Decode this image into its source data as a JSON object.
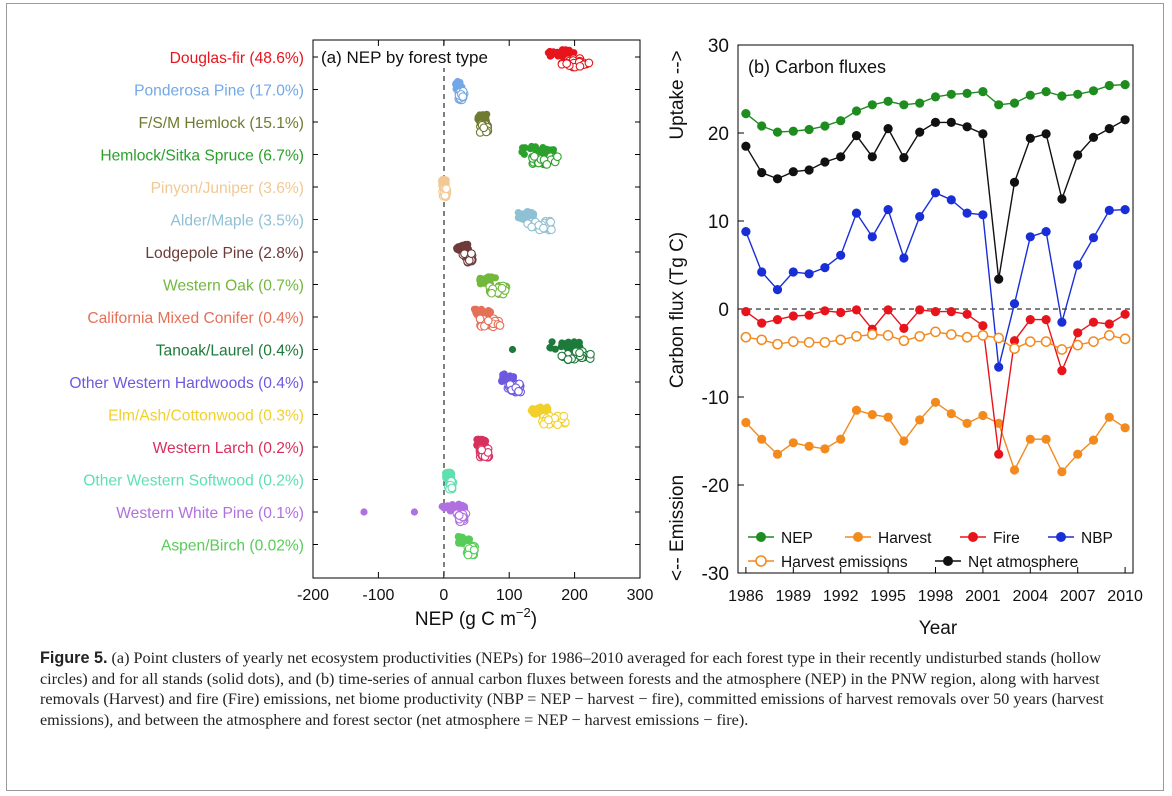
{
  "caption": {
    "label": "Figure 5.",
    "text": "(a) Point clusters of yearly net ecosystem productivities (NEPs) for 1986–2010 averaged for each forest type in their recently undisturbed stands (hollow circles) and for all stands (solid dots), and (b) time-series of annual carbon fluxes between forests and the atmosphere (NEP) in the PNW region, along with harvest removals (Harvest) and fire (Fire) emissions, net biome productivity (NBP = NEP − harvest − fire), committed emissions of harvest removals over 50 years (harvest emissions), and between the atmosphere and forest sector (net atmosphere = NEP − harvest emissions − fire)."
  },
  "chart_data": [
    {
      "type": "scatter",
      "panel_title": "(a) NEP by forest type",
      "xlabel_main": "NEP (g C m",
      "xlabel_sup": "−2",
      "xlabel_tail": ")",
      "xlim": [
        -200,
        300
      ],
      "xticks": [
        -200,
        -100,
        0,
        100,
        200,
        300
      ],
      "reference_line_x": 0,
      "categories": [
        {
          "label": "Douglas-fir (48.6%)",
          "color": "#e8141c",
          "solid_range": [
            155,
            200
          ],
          "hollow_range": [
            180,
            222
          ],
          "outliers": []
        },
        {
          "label": "Ponderosa Pine (17.0%)",
          "color": "#72a8e6",
          "solid_range": [
            18,
            28
          ],
          "hollow_range": [
            22,
            32
          ],
          "outliers": []
        },
        {
          "label": "F/S/M Hemlock (15.1%)",
          "color": "#707a30",
          "solid_range": [
            52,
            66
          ],
          "hollow_range": [
            55,
            70
          ],
          "outliers": []
        },
        {
          "label": "Hemlock/Sitka Spruce (6.7%)",
          "color": "#2ca02c",
          "solid_range": [
            118,
            168
          ],
          "hollow_range": [
            135,
            178
          ],
          "outliers": []
        },
        {
          "label": "Pinyon/Juniper (3.6%)",
          "color": "#f2c894",
          "solid_range": [
            -4,
            4
          ],
          "hollow_range": [
            -2,
            5
          ],
          "outliers": []
        },
        {
          "label": "Alder/Maple (3.5%)",
          "color": "#8fc0d4",
          "solid_range": [
            112,
            140
          ],
          "hollow_range": [
            128,
            165
          ],
          "outliers": []
        },
        {
          "label": "Lodgepole Pine (2.8%)",
          "color": "#6e3a3a",
          "solid_range": [
            18,
            38
          ],
          "hollow_range": [
            28,
            44
          ],
          "outliers": []
        },
        {
          "label": "Western Oak (0.7%)",
          "color": "#72b83c",
          "solid_range": [
            55,
            82
          ],
          "hollow_range": [
            70,
            98
          ],
          "outliers": []
        },
        {
          "label": "California Mixed Conifer (0.4%)",
          "color": "#e57058",
          "solid_range": [
            45,
            72
          ],
          "hollow_range": [
            55,
            86
          ],
          "outliers": []
        },
        {
          "label": "Tanoak/Laurel (0.4%)",
          "color": "#1e7a3a",
          "solid_range": [
            160,
            210
          ],
          "hollow_range": [
            180,
            228
          ],
          "outliers": [
            105
          ]
        },
        {
          "label": "Other Western Hardwoods (0.4%)",
          "color": "#6e58e0",
          "solid_range": [
            88,
            108
          ],
          "hollow_range": [
            98,
            118
          ],
          "outliers": []
        },
        {
          "label": "Elm/Ash/Cottonwood (0.3%)",
          "color": "#f2d02c",
          "solid_range": [
            133,
            160
          ],
          "hollow_range": [
            150,
            188
          ],
          "outliers": []
        },
        {
          "label": "Western Larch (0.2%)",
          "color": "#d8305e",
          "solid_range": [
            50,
            65
          ],
          "hollow_range": [
            55,
            70
          ],
          "outliers": []
        },
        {
          "label": "Other Western Softwood (0.2%)",
          "color": "#5ee0b0",
          "solid_range": [
            2,
            12
          ],
          "hollow_range": [
            6,
            14
          ],
          "outliers": []
        },
        {
          "label": "Western White Pine (0.1%)",
          "color": "#b070e0",
          "solid_range": [
            -3,
            32
          ],
          "hollow_range": [
            20,
            34
          ],
          "outliers": [
            -122,
            -45
          ]
        },
        {
          "label": "Aspen/Birch (0.02%)",
          "color": "#58cc58",
          "solid_range": [
            20,
            40
          ],
          "hollow_range": [
            35,
            48
          ],
          "outliers": []
        }
      ]
    },
    {
      "type": "line",
      "panel_title": "(b) Carbon fluxes",
      "ylabel": "Carbon flux (Tg C)",
      "ylabel_top": "Uptake -->",
      "ylabel_bottom": "<-- Emission",
      "xlabel": "Year",
      "ylim": [
        -30,
        30
      ],
      "yticks": [
        -30,
        -20,
        -10,
        0,
        10,
        20,
        30
      ],
      "xlim": [
        1985.5,
        2010.5
      ],
      "xticks": [
        1986,
        1989,
        1992,
        1995,
        1998,
        2001,
        2004,
        2007,
        2010
      ],
      "x": [
        1986,
        1987,
        1988,
        1989,
        1990,
        1991,
        1992,
        1993,
        1994,
        1995,
        1996,
        1997,
        1998,
        1999,
        2000,
        2001,
        2002,
        2003,
        2004,
        2005,
        2006,
        2007,
        2008,
        2009,
        2010
      ],
      "series": [
        {
          "name": "NEP",
          "color": "#1e8c1e",
          "hollow": false,
          "values": [
            22.2,
            20.8,
            20.1,
            20.2,
            20.4,
            20.8,
            21.4,
            22.5,
            23.2,
            23.6,
            23.2,
            23.4,
            24.1,
            24.4,
            24.5,
            24.7,
            23.2,
            23.4,
            24.3,
            24.7,
            24.2,
            24.4,
            24.8,
            25.4,
            25.5
          ]
        },
        {
          "name": "Harvest",
          "color": "#f28a1e",
          "hollow": false,
          "values": [
            -12.9,
            -14.8,
            -16.5,
            -15.2,
            -15.6,
            -15.9,
            -14.8,
            -11.5,
            -12.0,
            -12.3,
            -15.0,
            -12.6,
            -10.6,
            -11.9,
            -13.0,
            -12.1,
            -13.0,
            -18.3,
            -14.8,
            -14.8,
            -18.5,
            -16.5,
            -14.9,
            -12.3,
            -13.5
          ]
        },
        {
          "name": "Fire",
          "color": "#e8141c",
          "hollow": false,
          "values": [
            -0.3,
            -1.6,
            -1.2,
            -0.8,
            -0.7,
            -0.2,
            -0.4,
            -0.1,
            -2.3,
            -0.1,
            -2.2,
            -0.1,
            -0.3,
            -0.3,
            -0.6,
            -1.9,
            -16.5,
            -3.6,
            -1.2,
            -1.2,
            -7.0,
            -2.7,
            -1.5,
            -1.7,
            -0.6
          ]
        },
        {
          "name": "NBP",
          "color": "#1a2ed8",
          "hollow": false,
          "values": [
            8.8,
            4.2,
            2.2,
            4.2,
            4.0,
            4.7,
            6.1,
            10.9,
            8.2,
            11.3,
            5.8,
            10.5,
            13.2,
            12.4,
            10.9,
            10.7,
            -6.6,
            0.6,
            8.2,
            8.8,
            -1.5,
            5.0,
            8.1,
            11.2,
            11.3
          ]
        },
        {
          "name": "Harvest emissions",
          "color": "#f28a1e",
          "hollow": true,
          "values": [
            -3.2,
            -3.5,
            -4.0,
            -3.7,
            -3.8,
            -3.8,
            -3.5,
            -3.1,
            -2.9,
            -3.0,
            -3.6,
            -3.1,
            -2.6,
            -2.9,
            -3.2,
            -3.0,
            -3.3,
            -4.5,
            -3.7,
            -3.7,
            -4.6,
            -4.1,
            -3.7,
            -3.0,
            -3.4
          ]
        },
        {
          "name": "Net atmosphere",
          "color": "#111111",
          "hollow": false,
          "values": [
            18.5,
            15.5,
            14.8,
            15.6,
            15.8,
            16.7,
            17.3,
            19.7,
            17.3,
            20.5,
            17.2,
            20.1,
            21.2,
            21.2,
            20.7,
            19.9,
            3.4,
            14.4,
            19.4,
            19.9,
            12.5,
            17.5,
            19.5,
            20.5,
            21.5
          ]
        }
      ]
    }
  ]
}
